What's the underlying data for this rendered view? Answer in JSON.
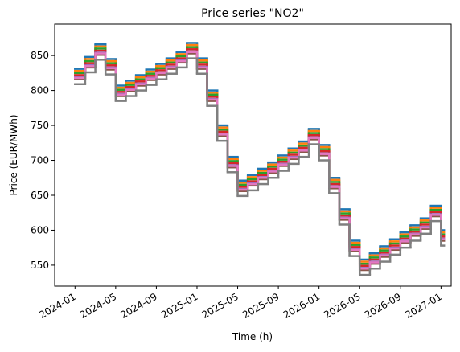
{
  "chart_data": {
    "type": "line",
    "title": "Price series \"NO2\"",
    "x_label": "Time (h)",
    "y_label": "Price (EUR/MWh)",
    "x": [
      "2024-01",
      "2024-02",
      "2024-03",
      "2024-04",
      "2024-05",
      "2024-06",
      "2024-07",
      "2024-08",
      "2024-09",
      "2024-10",
      "2024-11",
      "2024-12",
      "2025-01",
      "2025-02",
      "2025-03",
      "2025-04",
      "2025-05",
      "2025-06",
      "2025-07",
      "2025-08",
      "2025-09",
      "2025-10",
      "2025-11",
      "2025-12",
      "2026-01",
      "2026-02",
      "2026-03",
      "2026-04",
      "2026-05",
      "2026-06",
      "2026-07",
      "2026-08",
      "2026-09",
      "2026-10",
      "2026-11",
      "2026-12",
      "2027-01"
    ],
    "series": [
      {
        "color": "#1f77b4",
        "values": [
          831,
          848,
          866,
          845,
          807,
          814,
          822,
          830,
          838,
          846,
          855,
          868,
          846,
          800,
          750,
          705,
          671,
          679,
          688,
          697,
          707,
          717,
          727,
          745,
          722,
          675,
          630,
          585,
          558,
          567,
          577,
          587,
          597,
          607,
          617,
          635,
          600
        ]
      },
      {
        "color": "#ff7f0e",
        "values": [
          828,
          845,
          863,
          842,
          804,
          811,
          819,
          827,
          835,
          843,
          852,
          865,
          843,
          797,
          747,
          702,
          668,
          676,
          685,
          694,
          704,
          714,
          724,
          742,
          719,
          672,
          627,
          582,
          555,
          564,
          574,
          584,
          594,
          604,
          614,
          632,
          597
        ]
      },
      {
        "color": "#2ca02c",
        "values": [
          825,
          842,
          860,
          839,
          801,
          808,
          816,
          824,
          832,
          840,
          849,
          862,
          840,
          794,
          744,
          699,
          665,
          673,
          682,
          691,
          701,
          711,
          721,
          739,
          716,
          669,
          624,
          579,
          552,
          561,
          571,
          581,
          591,
          601,
          611,
          629,
          594
        ]
      },
      {
        "color": "#d62728",
        "values": [
          822,
          839,
          857,
          836,
          798,
          805,
          813,
          821,
          829,
          837,
          846,
          859,
          837,
          791,
          741,
          696,
          662,
          670,
          679,
          688,
          698,
          708,
          718,
          736,
          713,
          666,
          621,
          576,
          549,
          558,
          568,
          578,
          588,
          598,
          608,
          626,
          591
        ]
      },
      {
        "color": "#9467bd",
        "values": [
          819,
          836,
          854,
          833,
          795,
          802,
          810,
          818,
          826,
          834,
          843,
          856,
          834,
          788,
          738,
          693,
          659,
          667,
          676,
          685,
          695,
          705,
          715,
          733,
          710,
          663,
          618,
          573,
          546,
          555,
          565,
          575,
          585,
          595,
          605,
          623,
          588
        ]
      },
      {
        "color": "#8c564b",
        "values": [
          816,
          833,
          851,
          830,
          792,
          799,
          807,
          815,
          823,
          831,
          840,
          853,
          831,
          785,
          735,
          690,
          656,
          664,
          673,
          682,
          692,
          702,
          712,
          730,
          707,
          660,
          615,
          570,
          543,
          552,
          562,
          572,
          582,
          592,
          602,
          620,
          585
        ]
      },
      {
        "color": "#e377c2",
        "values": [
          818,
          835,
          853,
          832,
          794,
          801,
          809,
          817,
          825,
          833,
          842,
          855,
          833,
          787,
          737,
          692,
          658,
          666,
          675,
          684,
          694,
          704,
          714,
          732,
          709,
          662,
          617,
          572,
          545,
          554,
          564,
          574,
          584,
          594,
          604,
          622,
          587
        ]
      },
      {
        "color": "#7f7f7f",
        "values": [
          809,
          826,
          844,
          823,
          785,
          792,
          800,
          808,
          816,
          824,
          833,
          846,
          824,
          778,
          728,
          683,
          649,
          657,
          666,
          675,
          685,
          695,
          705,
          723,
          700,
          653,
          608,
          563,
          536,
          545,
          555,
          565,
          575,
          585,
          595,
          613,
          578
        ]
      }
    ],
    "xlim": [
      "2023-11",
      "2027-02"
    ],
    "xticks": [
      "2024-01",
      "2024-05",
      "2024-09",
      "2025-01",
      "2025-05",
      "2025-09",
      "2026-01",
      "2026-05",
      "2026-09",
      "2027-01"
    ],
    "ylim": [
      520,
      895
    ],
    "yticks": [
      550,
      600,
      650,
      700,
      750,
      800,
      850
    ]
  }
}
